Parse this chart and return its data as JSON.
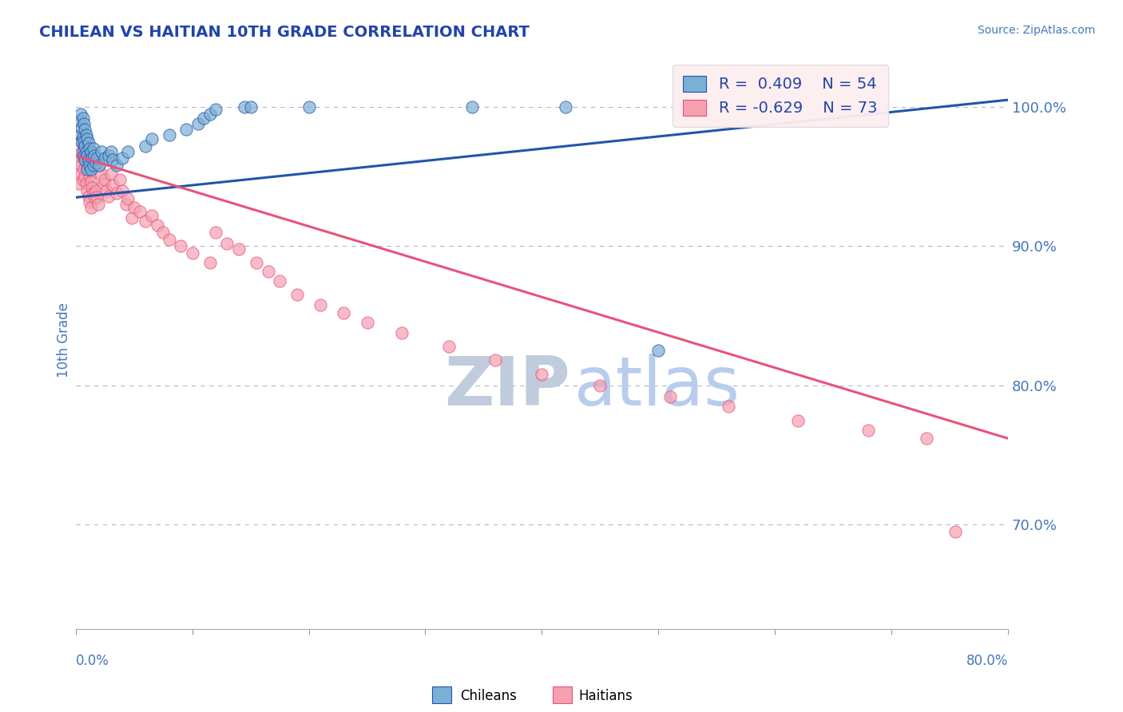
{
  "title": "CHILEAN VS HAITIAN 10TH GRADE CORRELATION CHART",
  "source_text": "Source: ZipAtlas.com",
  "ylabel": "10th Grade",
  "right_yticks": [
    "100.0%",
    "90.0%",
    "80.0%",
    "70.0%"
  ],
  "right_ytick_vals": [
    1.0,
    0.9,
    0.8,
    0.7
  ],
  "xlim": [
    0.0,
    0.8
  ],
  "ylim": [
    0.625,
    1.04
  ],
  "chilean_R": 0.409,
  "chilean_N": 54,
  "haitian_R": -0.629,
  "haitian_N": 73,
  "chilean_color": "#7BAFD4",
  "haitian_color": "#F4A0B0",
  "chilean_line_color": "#2255AA",
  "haitian_line_color": "#E8537A",
  "background_color": "#FFFFFF",
  "grid_color": "#B0B8CC",
  "title_color": "#2244AA",
  "axis_label_color": "#4477BB",
  "watermark_zip_color": "#C0CCDD",
  "watermark_atlas_color": "#B8CCEE",
  "chilean_line_x0": 0.0,
  "chilean_line_y0": 0.935,
  "chilean_line_x1": 0.8,
  "chilean_line_y1": 1.005,
  "haitian_line_x0": 0.0,
  "haitian_line_y0": 0.965,
  "haitian_line_x1": 0.8,
  "haitian_line_y1": 0.762,
  "chilean_pts_x": [
    0.003,
    0.004,
    0.004,
    0.005,
    0.005,
    0.006,
    0.006,
    0.006,
    0.007,
    0.007,
    0.007,
    0.008,
    0.008,
    0.008,
    0.009,
    0.009,
    0.01,
    0.01,
    0.01,
    0.011,
    0.011,
    0.012,
    0.012,
    0.013,
    0.013,
    0.014,
    0.015,
    0.015,
    0.016,
    0.017,
    0.018,
    0.02,
    0.022,
    0.025,
    0.028,
    0.03,
    0.032,
    0.035,
    0.04,
    0.045,
    0.06,
    0.065,
    0.08,
    0.095,
    0.105,
    0.11,
    0.115,
    0.12,
    0.145,
    0.15,
    0.2,
    0.34,
    0.42,
    0.5
  ],
  "chilean_pts_y": [
    0.99,
    0.98,
    0.995,
    0.985,
    0.975,
    0.992,
    0.978,
    0.968,
    0.988,
    0.975,
    0.965,
    0.984,
    0.972,
    0.962,
    0.98,
    0.968,
    0.977,
    0.965,
    0.955,
    0.974,
    0.962,
    0.97,
    0.958,
    0.967,
    0.955,
    0.963,
    0.97,
    0.958,
    0.965,
    0.96,
    0.963,
    0.958,
    0.968,
    0.963,
    0.965,
    0.968,
    0.962,
    0.958,
    0.963,
    0.968,
    0.972,
    0.977,
    0.98,
    0.984,
    0.988,
    0.992,
    0.995,
    0.998,
    1.0,
    1.0,
    1.0,
    1.0,
    1.0,
    0.825
  ],
  "haitian_pts_x": [
    0.003,
    0.003,
    0.004,
    0.004,
    0.005,
    0.005,
    0.006,
    0.006,
    0.007,
    0.007,
    0.008,
    0.008,
    0.009,
    0.009,
    0.01,
    0.01,
    0.011,
    0.011,
    0.012,
    0.012,
    0.013,
    0.013,
    0.014,
    0.015,
    0.016,
    0.017,
    0.018,
    0.019,
    0.02,
    0.022,
    0.024,
    0.025,
    0.026,
    0.028,
    0.03,
    0.032,
    0.035,
    0.038,
    0.04,
    0.043,
    0.045,
    0.048,
    0.05,
    0.055,
    0.06,
    0.065,
    0.07,
    0.075,
    0.08,
    0.09,
    0.1,
    0.115,
    0.12,
    0.13,
    0.14,
    0.155,
    0.165,
    0.175,
    0.19,
    0.21,
    0.23,
    0.25,
    0.28,
    0.32,
    0.36,
    0.4,
    0.45,
    0.51,
    0.56,
    0.62,
    0.68,
    0.73,
    0.755
  ],
  "haitian_pts_y": [
    0.96,
    0.945,
    0.975,
    0.958,
    0.968,
    0.952,
    0.964,
    0.948,
    0.972,
    0.955,
    0.967,
    0.95,
    0.963,
    0.945,
    0.958,
    0.94,
    0.954,
    0.936,
    0.95,
    0.932,
    0.946,
    0.928,
    0.942,
    0.938,
    0.935,
    0.94,
    0.935,
    0.93,
    0.958,
    0.952,
    0.945,
    0.948,
    0.94,
    0.936,
    0.952,
    0.944,
    0.938,
    0.948,
    0.94,
    0.93,
    0.934,
    0.92,
    0.928,
    0.925,
    0.918,
    0.922,
    0.915,
    0.91,
    0.905,
    0.9,
    0.895,
    0.888,
    0.91,
    0.902,
    0.898,
    0.888,
    0.882,
    0.875,
    0.865,
    0.858,
    0.852,
    0.845,
    0.838,
    0.828,
    0.818,
    0.808,
    0.8,
    0.792,
    0.785,
    0.775,
    0.768,
    0.762,
    0.695
  ]
}
